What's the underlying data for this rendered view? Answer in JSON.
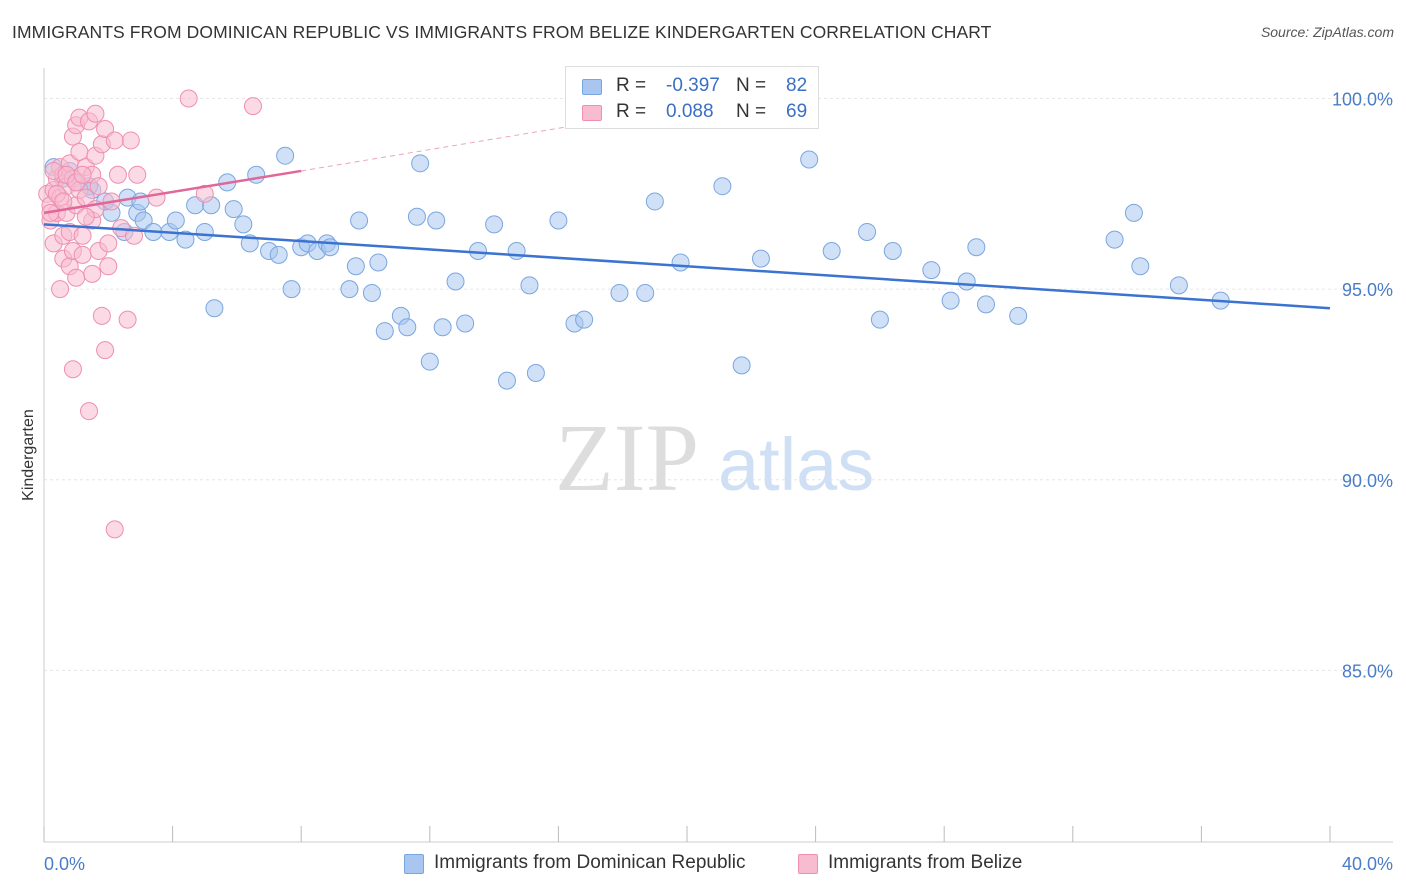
{
  "title": "IMMIGRANTS FROM DOMINICAN REPUBLIC VS IMMIGRANTS FROM BELIZE KINDERGARTEN CORRELATION CHART",
  "source": "Source: ZipAtlas.com",
  "watermark": {
    "zip": "ZIP",
    "atlas": "atlas"
  },
  "legend_top": [
    {
      "r_label": "R =",
      "r_value": "-0.397",
      "n_label": "N =",
      "n_value": "82",
      "color": "#a8c6f0",
      "border": "#7aa6e0"
    },
    {
      "r_label": "R =",
      "r_value": "0.088",
      "n_label": "N =",
      "n_value": "69",
      "color": "#f7bcd0",
      "border": "#ee8fb0"
    }
  ],
  "legend_bottom": [
    {
      "label": "Immigrants from Dominican Republic",
      "color": "#a8c6f0",
      "border": "#7aa6e0"
    },
    {
      "label": "Immigrants from Belize",
      "color": "#f7bcd0",
      "border": "#ee8fb0"
    }
  ],
  "chart_data": {
    "type": "scatter",
    "ylabel": "Kindergarten",
    "xlim": [
      0,
      40
    ],
    "ylim": [
      80.5,
      100.8
    ],
    "y_ticks": [
      {
        "value": 100,
        "label": "100.0%"
      },
      {
        "value": 95,
        "label": "95.0%"
      },
      {
        "value": 90,
        "label": "90.0%"
      },
      {
        "value": 85,
        "label": "85.0%"
      }
    ],
    "x_tick_labels": [
      {
        "value": 0,
        "label": "0.0%"
      },
      {
        "value": 40,
        "label": "40.0%"
      }
    ],
    "x_minor_ticks": [
      0,
      4,
      8,
      12,
      16,
      20,
      24,
      28,
      32,
      36,
      40
    ],
    "grid": true,
    "legend_placement": "top-center",
    "series": [
      {
        "name": "Immigrants from Dominican Republic",
        "color": "#a8c6f0",
        "stroke": "#7aa6e0",
        "trend": {
          "x": [
            0,
            40
          ],
          "y": [
            96.7,
            94.5
          ],
          "color": "#3a73d0"
        },
        "points": [
          [
            0.3,
            98.2
          ],
          [
            0.6,
            97.9
          ],
          [
            1.0,
            97.8
          ],
          [
            1.5,
            97.6
          ],
          [
            2.6,
            97.4
          ],
          [
            2.1,
            97.0
          ],
          [
            2.5,
            96.5
          ],
          [
            2.9,
            97.0
          ],
          [
            3.0,
            97.3
          ],
          [
            3.1,
            96.8
          ],
          [
            3.4,
            96.5
          ],
          [
            3.9,
            96.5
          ],
          [
            4.1,
            96.8
          ],
          [
            4.4,
            96.3
          ],
          [
            4.7,
            97.2
          ],
          [
            5.0,
            96.5
          ],
          [
            5.2,
            97.2
          ],
          [
            5.3,
            94.5
          ],
          [
            5.7,
            97.8
          ],
          [
            5.9,
            97.1
          ],
          [
            6.2,
            96.7
          ],
          [
            6.4,
            96.2
          ],
          [
            6.6,
            98.0
          ],
          [
            7.0,
            96.0
          ],
          [
            7.3,
            95.9
          ],
          [
            7.5,
            98.5
          ],
          [
            7.7,
            95.0
          ],
          [
            8.0,
            96.1
          ],
          [
            8.2,
            96.2
          ],
          [
            8.5,
            96.0
          ],
          [
            8.8,
            96.2
          ],
          [
            8.9,
            96.1
          ],
          [
            9.5,
            95.0
          ],
          [
            9.7,
            95.6
          ],
          [
            9.8,
            96.8
          ],
          [
            10.2,
            94.9
          ],
          [
            10.4,
            95.7
          ],
          [
            10.6,
            93.9
          ],
          [
            11.1,
            94.3
          ],
          [
            11.3,
            94.0
          ],
          [
            11.6,
            96.9
          ],
          [
            11.7,
            98.3
          ],
          [
            12.0,
            93.1
          ],
          [
            12.2,
            96.8
          ],
          [
            12.4,
            94.0
          ],
          [
            12.8,
            95.2
          ],
          [
            13.1,
            94.1
          ],
          [
            13.5,
            96.0
          ],
          [
            14.0,
            96.7
          ],
          [
            14.4,
            92.6
          ],
          [
            14.7,
            96.0
          ],
          [
            15.1,
            95.1
          ],
          [
            15.3,
            92.8
          ],
          [
            16.0,
            96.8
          ],
          [
            16.5,
            94.1
          ],
          [
            16.8,
            94.2
          ],
          [
            17.9,
            94.9
          ],
          [
            18.7,
            94.9
          ],
          [
            19.0,
            97.3
          ],
          [
            19.8,
            95.7
          ],
          [
            21.1,
            97.7
          ],
          [
            21.7,
            93.0
          ],
          [
            22.3,
            95.8
          ],
          [
            23.8,
            98.4
          ],
          [
            24.5,
            96.0
          ],
          [
            25.6,
            96.5
          ],
          [
            26.0,
            94.2
          ],
          [
            26.4,
            96.0
          ],
          [
            27.6,
            95.5
          ],
          [
            28.2,
            94.7
          ],
          [
            28.7,
            95.2
          ],
          [
            29.0,
            96.1
          ],
          [
            29.3,
            94.6
          ],
          [
            30.3,
            94.3
          ],
          [
            33.3,
            96.3
          ],
          [
            33.9,
            97.0
          ],
          [
            34.1,
            95.6
          ],
          [
            35.3,
            95.1
          ],
          [
            36.6,
            94.7
          ],
          [
            0.8,
            98.1
          ],
          [
            1.4,
            97.7
          ],
          [
            1.9,
            97.3
          ]
        ]
      },
      {
        "name": "Immigrants from Belize",
        "color": "#f7bcd0",
        "stroke": "#ee8fb0",
        "trend": {
          "x": [
            0,
            8
          ],
          "y": [
            97.0,
            98.1
          ],
          "color": "#e0679a"
        },
        "trend_extension": {
          "x": [
            8,
            18
          ],
          "y": [
            98.1,
            99.5
          ]
        },
        "points": [
          [
            0.1,
            97.5
          ],
          [
            0.2,
            97.2
          ],
          [
            0.2,
            96.8
          ],
          [
            0.3,
            97.6
          ],
          [
            0.3,
            96.2
          ],
          [
            0.4,
            97.9
          ],
          [
            0.4,
            97.0
          ],
          [
            0.5,
            98.2
          ],
          [
            0.5,
            97.4
          ],
          [
            0.5,
            95.0
          ],
          [
            0.6,
            98.0
          ],
          [
            0.6,
            96.4
          ],
          [
            0.6,
            95.8
          ],
          [
            0.7,
            97.7
          ],
          [
            0.7,
            97.0
          ],
          [
            0.8,
            98.3
          ],
          [
            0.8,
            96.5
          ],
          [
            0.8,
            95.6
          ],
          [
            0.9,
            99.0
          ],
          [
            0.9,
            97.9
          ],
          [
            0.9,
            96.0
          ],
          [
            0.9,
            92.9
          ],
          [
            1.0,
            99.3
          ],
          [
            1.0,
            97.2
          ],
          [
            1.0,
            95.3
          ],
          [
            1.1,
            99.5
          ],
          [
            1.1,
            98.6
          ],
          [
            1.1,
            97.6
          ],
          [
            1.2,
            96.4
          ],
          [
            1.2,
            95.9
          ],
          [
            1.3,
            98.2
          ],
          [
            1.3,
            97.4
          ],
          [
            1.4,
            99.4
          ],
          [
            1.4,
            91.8
          ],
          [
            1.5,
            98.0
          ],
          [
            1.5,
            96.8
          ],
          [
            1.5,
            95.4
          ],
          [
            1.6,
            99.6
          ],
          [
            1.6,
            98.5
          ],
          [
            1.6,
            97.1
          ],
          [
            1.7,
            96.0
          ],
          [
            1.8,
            98.8
          ],
          [
            1.8,
            94.3
          ],
          [
            1.9,
            99.2
          ],
          [
            1.9,
            93.4
          ],
          [
            2.0,
            96.2
          ],
          [
            2.0,
            95.6
          ],
          [
            2.1,
            97.3
          ],
          [
            2.3,
            98.0
          ],
          [
            2.4,
            96.6
          ],
          [
            2.2,
            88.7
          ],
          [
            2.6,
            94.2
          ],
          [
            2.7,
            98.9
          ],
          [
            2.9,
            98.0
          ],
          [
            3.5,
            97.4
          ],
          [
            4.5,
            100.0
          ],
          [
            5.0,
            97.5
          ],
          [
            6.5,
            99.8
          ],
          [
            0.3,
            98.1
          ],
          [
            0.4,
            97.5
          ],
          [
            0.7,
            98.0
          ],
          [
            1.0,
            97.8
          ],
          [
            1.3,
            96.9
          ],
          [
            1.7,
            97.7
          ],
          [
            2.2,
            98.9
          ],
          [
            0.2,
            97.0
          ],
          [
            0.6,
            97.3
          ],
          [
            1.2,
            98.0
          ],
          [
            2.8,
            96.4
          ]
        ]
      }
    ]
  }
}
